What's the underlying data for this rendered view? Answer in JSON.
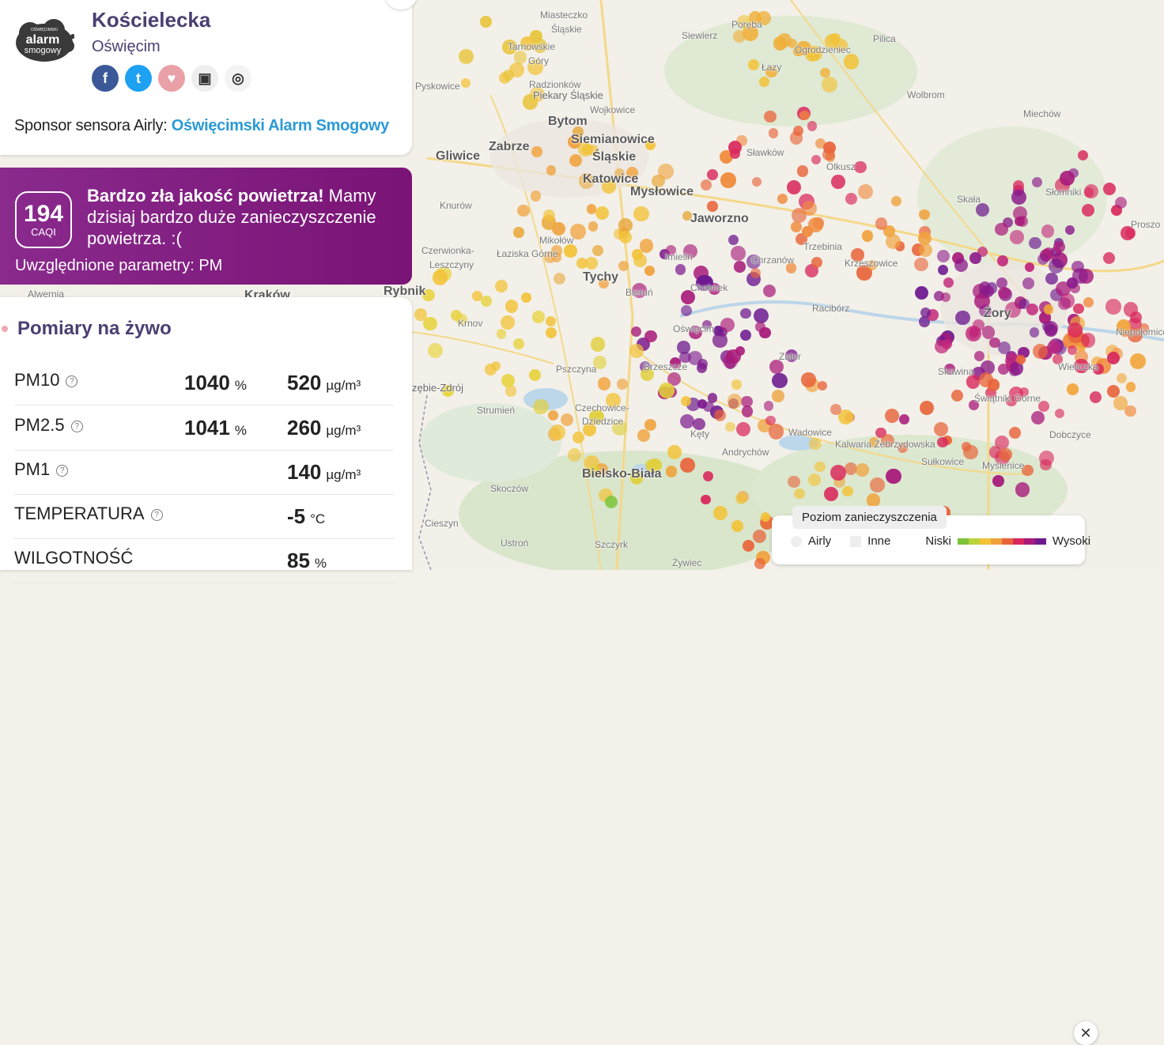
{
  "station": {
    "name": "Kościelecka",
    "city": "Oświęcim",
    "logo_text_top": "alarm",
    "logo_text_bottom": "smogowy",
    "logo_text_small": "OŚWIĘCIMSKI"
  },
  "social": [
    {
      "name": "facebook-button",
      "glyph": "f",
      "color": "#3b5998"
    },
    {
      "name": "twitter-button",
      "glyph": "t",
      "color": "#1da1f2"
    },
    {
      "name": "favorite-button",
      "glyph": "♥",
      "color": "#e9a0a7"
    },
    {
      "name": "widget-button",
      "glyph": "▣",
      "color": "#eeeeee"
    },
    {
      "name": "locate-button",
      "glyph": "◎",
      "color": "#f3f3f3"
    }
  ],
  "sponsor": {
    "label": "Sponsor sensora Airly: ",
    "link_text": "Oświęcimski Alarm Smogowy"
  },
  "air_quality": {
    "caqi": "194",
    "caqi_unit": "CAQI",
    "headline": "Bardzo zła jakość powietrza!",
    "message": " Mamy dzisiaj bardzo duże zanieczyszczenie powietrza. :(",
    "params_label": "Uwzględnione parametry: PM"
  },
  "live": {
    "title": "Pomiary na żywo",
    "rows": [
      {
        "name": "PM10",
        "help": true,
        "pct": "1040",
        "pct_unit": "%",
        "value": "520",
        "unit": "µg/m³"
      },
      {
        "name": "PM2.5",
        "help": true,
        "pct": "1041",
        "pct_unit": "%",
        "value": "260",
        "unit": "µg/m³"
      },
      {
        "name": "PM1",
        "help": true,
        "pct": "",
        "pct_unit": "",
        "value": "140",
        "unit": "µg/m³"
      },
      {
        "name": "TEMPERATURA",
        "help": true,
        "pct": "",
        "pct_unit": "",
        "value": "-5",
        "unit": "°C"
      },
      {
        "name": "WILGOTNOŚĆ",
        "help": false,
        "pct": "",
        "pct_unit": "",
        "value": "85",
        "unit": "%"
      }
    ]
  },
  "legend": {
    "title": "Poziom zanieczyszczenia",
    "airly": "Airly",
    "other": "Inne",
    "low": "Niski",
    "high": "Wysoki",
    "scale_colors": [
      "#7cc43b",
      "#b9d43a",
      "#f2c33a",
      "#f0a23c",
      "#e8643a",
      "#d9285c",
      "#a81a7a",
      "#6d1a8f"
    ],
    "close_glyph": "✕"
  },
  "map_labels": [
    {
      "t": "Miasteczko",
      "c": "small"
    },
    {
      "t": "Śląskie",
      "c": "small"
    },
    {
      "t": "Tarnowskie",
      "c": "small"
    },
    {
      "t": "Góry",
      "c": "small"
    },
    {
      "t": "Siewierz",
      "c": "small"
    },
    {
      "t": "Poręba",
      "c": "small"
    },
    {
      "t": "Ogrodzieniec",
      "c": "small"
    },
    {
      "t": "Pilica",
      "c": "small"
    },
    {
      "t": "Łazy",
      "c": "small"
    },
    {
      "t": "Pyskowice",
      "c": "small"
    },
    {
      "t": "Radzionków",
      "c": "small"
    },
    {
      "t": "Piekary Śląskie",
      "c": "town"
    },
    {
      "t": "Wojkowice",
      "c": "small"
    },
    {
      "t": "Bytom",
      "c": "city"
    },
    {
      "t": "Wolbrom",
      "c": "small"
    },
    {
      "t": "Miechów",
      "c": "small"
    },
    {
      "t": "Siemianowice",
      "c": "city"
    },
    {
      "t": "Śląskie",
      "c": "city"
    },
    {
      "t": "Gliwice",
      "c": "city"
    },
    {
      "t": "Zabrze",
      "c": "city"
    },
    {
      "t": "Sławków",
      "c": "small"
    },
    {
      "t": "Olkusz",
      "c": "small"
    },
    {
      "t": "Katowice",
      "c": "city"
    },
    {
      "t": "Mysłowice",
      "c": "city"
    },
    {
      "t": "Słomniki",
      "c": "small"
    },
    {
      "t": "Skała",
      "c": "small"
    },
    {
      "t": "Knurów",
      "c": "small"
    },
    {
      "t": "Jaworzno",
      "c": "city"
    },
    {
      "t": "Proszo",
      "c": "small"
    },
    {
      "t": "Mikołów",
      "c": "small"
    },
    {
      "t": "Trzebinia",
      "c": "small"
    },
    {
      "t": "Czerwionka-",
      "c": "small"
    },
    {
      "t": "Leszczyny",
      "c": "small"
    },
    {
      "t": "Łaziska Górne",
      "c": "small"
    },
    {
      "t": "Imielin",
      "c": "small"
    },
    {
      "t": "Chrzanów",
      "c": "small"
    },
    {
      "t": "Krzeszowice",
      "c": "small"
    },
    {
      "t": "Tychy",
      "c": "city"
    },
    {
      "t": "Chełmek",
      "c": "small"
    },
    {
      "t": "Bieruń",
      "c": "small"
    },
    {
      "t": "Rybnik",
      "c": "city"
    },
    {
      "t": "Alwernia",
      "c": "small"
    },
    {
      "t": "Kraków",
      "c": "city"
    },
    {
      "t": "Krnov",
      "c": "small"
    },
    {
      "t": "Racibórz",
      "c": "small"
    },
    {
      "t": "Żory",
      "c": "city"
    },
    {
      "t": "Oświęcim",
      "c": "small"
    },
    {
      "t": "Niepołomice",
      "c": "small"
    },
    {
      "t": "Zator",
      "c": "small"
    },
    {
      "t": "Pszczyna",
      "c": "small"
    },
    {
      "t": "Skawina",
      "c": "small"
    },
    {
      "t": "Wieliczka",
      "c": "small"
    },
    {
      "t": "Brzeszcze",
      "c": "small"
    },
    {
      "t": "zębie-Zdrój",
      "c": "town"
    },
    {
      "t": "Świątniki Górne",
      "c": "small"
    },
    {
      "t": "Strumień",
      "c": "small"
    },
    {
      "t": "Czechowice-",
      "c": "small"
    },
    {
      "t": "Dziedzice",
      "c": "small"
    },
    {
      "t": "Wadowice",
      "c": "small"
    },
    {
      "t": "Kęty",
      "c": "small"
    },
    {
      "t": "Kalwaria Zebrzydowska",
      "c": "small"
    },
    {
      "t": "Dobczyce",
      "c": "small"
    },
    {
      "t": "Andrychów",
      "c": "small"
    },
    {
      "t": "Sułkowice",
      "c": "small"
    },
    {
      "t": "Myślenice",
      "c": "small"
    },
    {
      "t": "Bielsko-Biała",
      "c": "city"
    },
    {
      "t": "Skoczów",
      "c": "small"
    },
    {
      "t": "Cieszyn",
      "c": "small"
    },
    {
      "t": "Ustroń",
      "c": "small"
    },
    {
      "t": "Szczyrk",
      "c": "small"
    },
    {
      "t": "Żywiec",
      "c": "small"
    }
  ]
}
